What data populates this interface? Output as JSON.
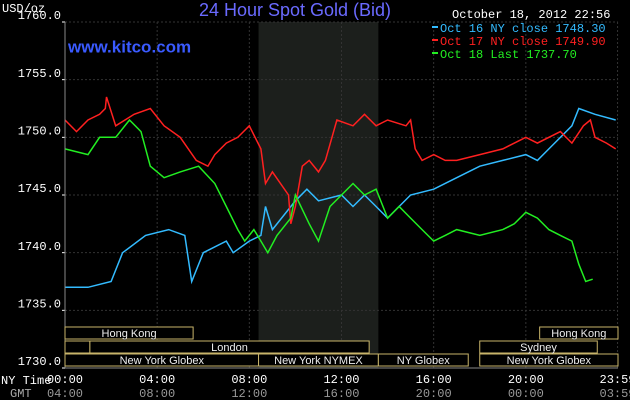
{
  "chart_data": {
    "type": "line",
    "title": "24 Hour Spot Gold (Bid)",
    "subtitle": "www.kitco.com",
    "timestamp": "October 18, 2012 22:56",
    "y_label": "USD/oz",
    "x_label": "NY Time",
    "x2_label": "GMT",
    "xlim": [
      0,
      24
    ],
    "ylim": [
      1730,
      1760
    ],
    "yticks": [
      {
        "value": 1730,
        "label": "1730.0"
      },
      {
        "value": 1735,
        "label": "1735.0"
      },
      {
        "value": 1740,
        "label": "1740.0"
      },
      {
        "value": 1745,
        "label": "1745.0"
      },
      {
        "value": 1750,
        "label": "1750.0"
      },
      {
        "value": 1755,
        "label": "1755.0"
      },
      {
        "value": 1760,
        "label": "1760.0"
      }
    ],
    "xticks": [
      {
        "value": 0,
        "label": "00:00"
      },
      {
        "value": 4,
        "label": "04:00"
      },
      {
        "value": 8,
        "label": "08:00"
      },
      {
        "value": 12,
        "label": "12:00"
      },
      {
        "value": 16,
        "label": "16:00"
      },
      {
        "value": 20,
        "label": "20:00"
      },
      {
        "value": 23.98,
        "label": "23:59"
      }
    ],
    "x2ticks": [
      "04:00",
      "08:00",
      "12:00",
      "16:00",
      "20:00",
      "00:00",
      "03:59"
    ],
    "grid": true,
    "shaded_range": [
      8.4,
      13.6
    ],
    "sessions": [
      {
        "label": "Hong Kong",
        "start": 0,
        "end": 5.56,
        "row": 0
      },
      {
        "label": "Hong Kong",
        "start": 20.6,
        "end": 24,
        "row": 0
      },
      {
        "label": null,
        "start": 0,
        "end": 1.08,
        "row": 1
      },
      {
        "label": "London",
        "start": 1.08,
        "end": 13.2,
        "row": 1
      },
      {
        "label": "Sydney",
        "start": 18,
        "end": 23.1,
        "row": 1
      },
      {
        "label": "New York Globex",
        "start": 0,
        "end": 8.4,
        "row": 2
      },
      {
        "label": "New York NYMEX",
        "start": 8.4,
        "end": 13.6,
        "row": 2
      },
      {
        "label": "NY Globex",
        "start": 13.6,
        "end": 17.5,
        "row": 2
      },
      {
        "label": "New York Globex",
        "start": 18,
        "end": 24,
        "row": 2
      }
    ],
    "series": [
      {
        "name": "Oct 16 NY close 1748.30",
        "color": "#33bbff",
        "x": [
          0,
          1,
          2,
          2.5,
          3.5,
          4.5,
          5.2,
          5.5,
          6,
          7,
          7.3,
          8,
          8.5,
          8.7,
          9,
          10,
          10.5,
          11,
          12,
          12.5,
          13,
          13.5,
          14,
          14.5,
          15,
          16,
          17,
          18,
          19,
          20,
          20.5,
          21,
          22,
          22.3,
          23,
          23.9
        ],
        "values": [
          1737,
          1737,
          1737.5,
          1740,
          1741.5,
          1742,
          1741.5,
          1737.5,
          1740,
          1741,
          1740,
          1741,
          1741.5,
          1744,
          1742,
          1744.5,
          1745.5,
          1744.5,
          1745,
          1744,
          1745,
          1744,
          1743,
          1744,
          1745,
          1745.5,
          1746.5,
          1747.5,
          1748,
          1748.5,
          1748,
          1749,
          1751,
          1752.5,
          1752,
          1751.5
        ]
      },
      {
        "name": "Oct 17 NY close 1749.90",
        "color": "#ff2020",
        "x": [
          0,
          0.5,
          1,
          1.5,
          1.75,
          1.8,
          2.2,
          3,
          3.7,
          4.3,
          5,
          5.7,
          6.2,
          6.5,
          7,
          7.5,
          8,
          8.5,
          8.7,
          9,
          9.7,
          9.8,
          10,
          10.3,
          10.6,
          11,
          11.3,
          11.8,
          12.5,
          13,
          13.5,
          14,
          14.8,
          15,
          15.2,
          15.5,
          16,
          16.5,
          17,
          18,
          19,
          20,
          20.5,
          21.5,
          22,
          22.5,
          22.8,
          23,
          23.5,
          23.9
        ],
        "values": [
          1751.5,
          1750.5,
          1751.5,
          1752,
          1752.5,
          1753.5,
          1751,
          1752,
          1752.5,
          1751,
          1750,
          1748,
          1747.5,
          1748.5,
          1749.5,
          1750,
          1751,
          1749,
          1746,
          1747,
          1745,
          1742.5,
          1744,
          1747.5,
          1748,
          1747,
          1748,
          1751.5,
          1751,
          1752,
          1751,
          1751.5,
          1751,
          1751.5,
          1749,
          1748,
          1748.5,
          1748,
          1748,
          1748.5,
          1749,
          1750,
          1749.5,
          1750.5,
          1749.5,
          1751,
          1751.5,
          1750,
          1749.5,
          1749
        ]
      },
      {
        "name": "Oct 18 Last 1737.70",
        "color": "#22ee22",
        "x": [
          0,
          1,
          1.5,
          2.2,
          2.8,
          3.3,
          3.7,
          4.3,
          5,
          5.8,
          6.5,
          7,
          7.5,
          7.8,
          8.2,
          8.5,
          8.8,
          9.2,
          9.8,
          10,
          10.6,
          11,
          11.5,
          12,
          12.5,
          13,
          13.5,
          14,
          14.5,
          15,
          15.5,
          16,
          16.5,
          17,
          18,
          19,
          19.5,
          20,
          20.5,
          21,
          21.5,
          22,
          22.3,
          22.6,
          22.9
        ],
        "values": [
          1749,
          1748.5,
          1750,
          1750,
          1751.5,
          1750.5,
          1747.5,
          1746.5,
          1747,
          1747.5,
          1746,
          1744,
          1742,
          1741,
          1742,
          1741,
          1740,
          1741.5,
          1743,
          1745,
          1742.5,
          1741,
          1744,
          1745,
          1746,
          1745,
          1745.5,
          1743,
          1744,
          1743,
          1742,
          1741,
          1741.5,
          1742,
          1741.5,
          1742,
          1742.5,
          1743.5,
          1743,
          1742,
          1741.5,
          1741,
          1739,
          1737.5,
          1737.7
        ]
      }
    ]
  }
}
